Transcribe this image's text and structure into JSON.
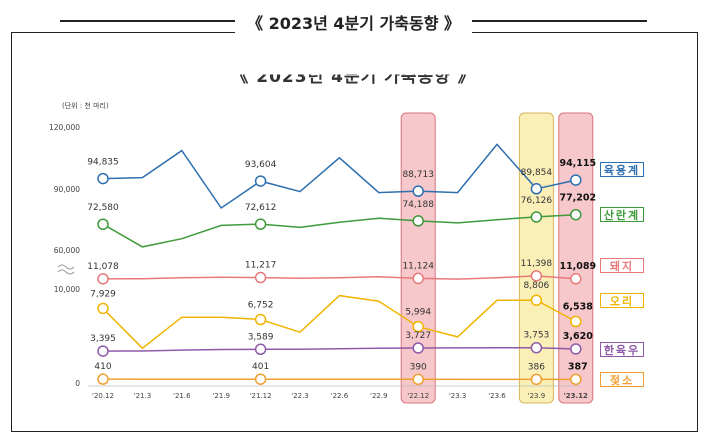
{
  "page_title": "《 2023년 4분기 가축동향 》",
  "chart_data": {
    "type": "line",
    "title": "《 2023년 4분기 가축동향 》",
    "unit": "(단위 : 천 마리)",
    "categories": [
      "'20.12",
      "'21.3",
      "'21.6",
      "'21.9",
      "'21.12",
      "'22.3",
      "'22.6",
      "'22.9",
      "'22.12",
      "'23.3",
      "'23.6",
      "'23.9",
      "'23.12"
    ],
    "y_ticks": [
      "120,000",
      "90,000",
      "60,000",
      "10,000",
      "0"
    ],
    "highlight_categories": [
      "'22.12",
      "'23.9",
      "'23.12"
    ],
    "series": [
      {
        "name": "육용계",
        "color": "#2e6fb0",
        "values": [
          94835,
          95300,
          108500,
          80500,
          93604,
          88500,
          105000,
          88000,
          88713,
          88000,
          111500,
          89854,
          94115
        ],
        "labels": {
          "0": "94,835",
          "4": "93,604",
          "8": "88,713",
          "11": "89,854",
          "12": "94,115"
        }
      },
      {
        "name": "산란계",
        "color": "#3e9a3a",
        "values": [
          72580,
          61500,
          65500,
          72000,
          72612,
          71000,
          73500,
          75500,
          74188,
          73200,
          74800,
          76126,
          77202
        ],
        "labels": {
          "0": "72,580",
          "4": "72,612",
          "8": "74,188",
          "11": "76,126",
          "12": "77,202"
        }
      },
      {
        "name": "돼지",
        "color": "#e8797a",
        "values": [
          11078,
          11100,
          11200,
          11250,
          11217,
          11150,
          11200,
          11300,
          11124,
          11050,
          11200,
          11398,
          11089
        ],
        "labels": {
          "0": "11,078",
          "4": "11,217",
          "8": "11,124",
          "11": "11,398",
          "12": "11,089"
        }
      },
      {
        "name": "오리",
        "color": "#f0b400",
        "values": [
          7929,
          3700,
          7000,
          7000,
          6752,
          5400,
          9300,
          8700,
          5994,
          4900,
          8800,
          8806,
          6538
        ],
        "labels": {
          "0": "7,929",
          "4": "6,752",
          "8": "5,994",
          "11": "8,806",
          "12": "6,538"
        }
      },
      {
        "name": "한육우",
        "color": "#8e5aa8",
        "values": [
          3395,
          3400,
          3500,
          3560,
          3589,
          3600,
          3650,
          3700,
          3727,
          3730,
          3745,
          3753,
          3620
        ],
        "labels": {
          "0": "3,395",
          "4": "3,589",
          "8": "3,727",
          "11": "3,753",
          "12": "3,620"
        }
      },
      {
        "name": "젖소",
        "color": "#f0a030",
        "values": [
          410,
          405,
          403,
          402,
          401,
          398,
          395,
          392,
          390,
          388,
          387,
          386,
          387
        ],
        "labels": {
          "0": "410",
          "4": "401",
          "8": "390",
          "11": "386",
          "12": "387"
        }
      }
    ]
  },
  "legend": [
    {
      "name": "육용계",
      "color": "#2e6fb0"
    },
    {
      "name": "산란계",
      "color": "#3e9a3a"
    },
    {
      "name": "돼지",
      "color": "#e8797a"
    },
    {
      "name": "오리",
      "color": "#f0b400"
    },
    {
      "name": "한육우",
      "color": "#8e5aa8"
    },
    {
      "name": "젖소",
      "color": "#f0a030"
    }
  ]
}
